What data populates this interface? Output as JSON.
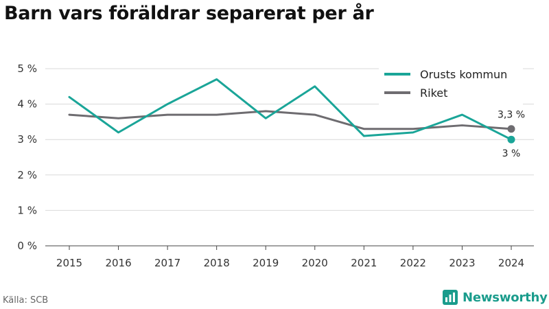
{
  "title": "Barn vars föräldrar separerat per år",
  "source": "Källa: SCB",
  "brand": {
    "name": "Newsworthy",
    "icon": "newsworthy-logo-icon"
  },
  "colors": {
    "orust": "#1aa598",
    "riket": "#6e6c70",
    "grid": "#d9d9d9",
    "axis": "#444444",
    "brand": "#1a9c8c"
  },
  "chart_data": {
    "type": "line",
    "title": "Barn vars föräldrar separerat per år",
    "xlabel": "",
    "ylabel": "",
    "categories": [
      "2015",
      "2016",
      "2017",
      "2018",
      "2019",
      "2020",
      "2021",
      "2022",
      "2023",
      "2024"
    ],
    "ylim": [
      0,
      5
    ],
    "yticks": [
      0,
      1,
      2,
      3,
      4,
      5
    ],
    "ytick_labels": [
      "0 %",
      "1 %",
      "2 %",
      "3 %",
      "4 %",
      "5 %"
    ],
    "grid": true,
    "legend_position": "top-right",
    "series": [
      {
        "name": "Orusts kommun",
        "values": [
          4.2,
          3.2,
          4.0,
          4.7,
          3.6,
          4.5,
          3.1,
          3.2,
          3.7,
          3.0
        ],
        "end_label": "3 %"
      },
      {
        "name": "Riket",
        "values": [
          3.7,
          3.6,
          3.7,
          3.7,
          3.8,
          3.7,
          3.3,
          3.3,
          3.4,
          3.3
        ],
        "end_label": "3,3 %"
      }
    ]
  }
}
